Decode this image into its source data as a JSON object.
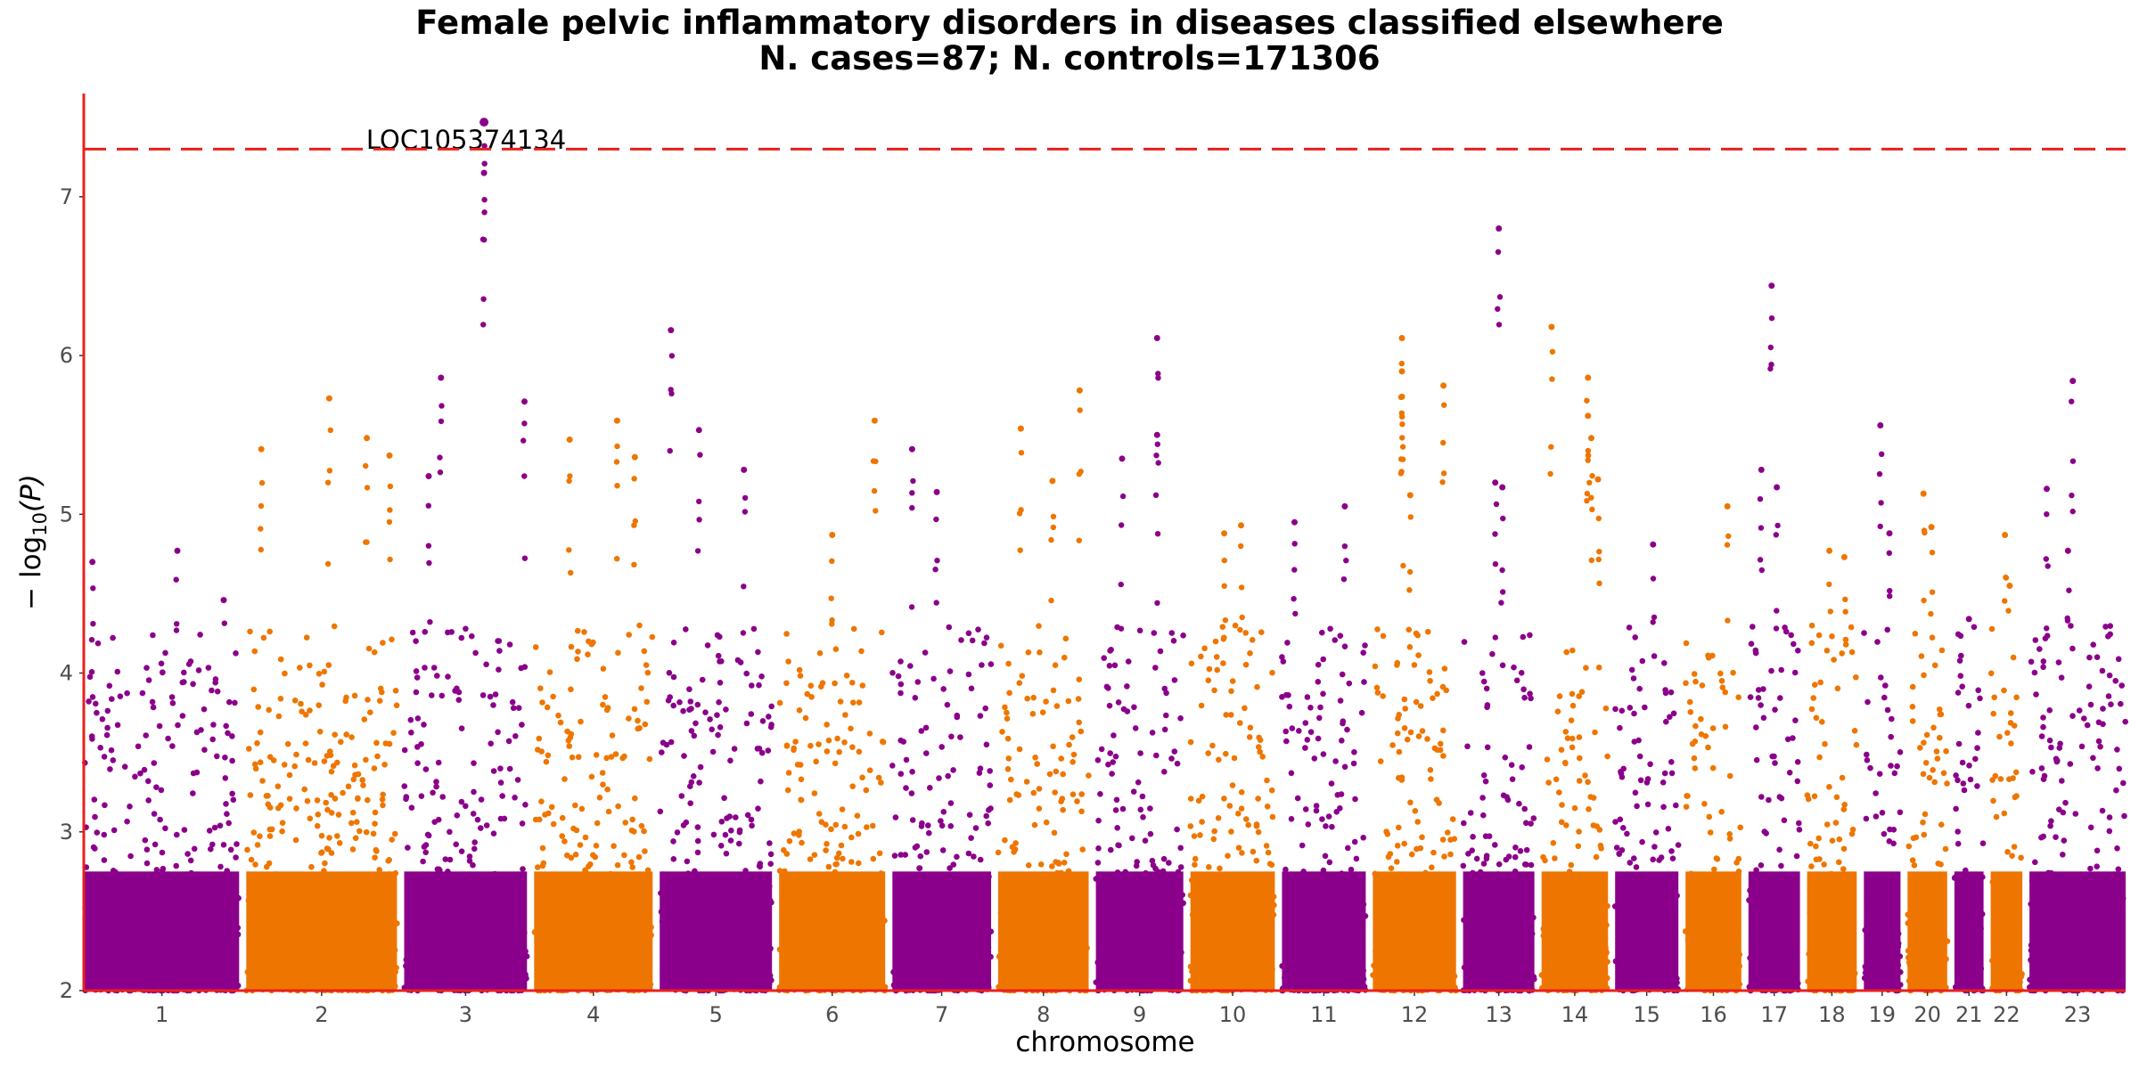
{
  "chart_data": {
    "type": "scatter",
    "subtype": "manhattan",
    "title": "Female pelvic inflammatory disorders in diseases classified elsewhere",
    "subtitle": "N. cases=87; N. controls=171306",
    "xlabel": "chromosome",
    "ylabel": "− log10(P)",
    "ylabel_parts": {
      "prefix": "− log",
      "sub": "10",
      "suffix": "(P)"
    },
    "ylim": [
      2,
      7.65
    ],
    "yticks": [
      2,
      3,
      4,
      5,
      6,
      7
    ],
    "significance_line": 7.3,
    "colors": {
      "odd": "#8B008B",
      "even": "#EE7600",
      "threshold": "#E8201E",
      "axis": "#E8201E"
    },
    "chromosomes": [
      {
        "label": "1",
        "length": 249,
        "color": "odd",
        "top_points": [
          [
            0.05,
            4.7
          ],
          [
            0.6,
            4.77
          ],
          [
            0.9,
            4.46
          ]
        ]
      },
      {
        "label": "2",
        "length": 243,
        "color": "even",
        "top_points": [
          [
            0.1,
            5.41
          ],
          [
            0.55,
            5.73
          ],
          [
            0.8,
            5.48
          ],
          [
            0.95,
            5.37
          ]
        ]
      },
      {
        "label": "3",
        "length": 198,
        "color": "odd",
        "top_points": [
          [
            0.3,
            5.86
          ],
          [
            0.2,
            5.24
          ],
          [
            0.65,
            7.47
          ],
          [
            0.65,
            7.15
          ],
          [
            0.98,
            5.71
          ]
        ]
      },
      {
        "label": "4",
        "length": 191,
        "color": "even",
        "top_points": [
          [
            0.3,
            5.47
          ],
          [
            0.7,
            5.59
          ],
          [
            0.85,
            5.36
          ]
        ]
      },
      {
        "label": "5",
        "length": 181,
        "color": "odd",
        "top_points": [
          [
            0.1,
            6.16
          ],
          [
            0.35,
            5.53
          ],
          [
            0.75,
            5.28
          ]
        ]
      },
      {
        "label": "6",
        "length": 171,
        "color": "even",
        "top_points": [
          [
            0.5,
            4.87
          ],
          [
            0.9,
            5.59
          ]
        ]
      },
      {
        "label": "7",
        "length": 159,
        "color": "odd",
        "top_points": [
          [
            0.2,
            5.41
          ],
          [
            0.45,
            5.14
          ]
        ]
      },
      {
        "label": "8",
        "length": 146,
        "color": "even",
        "top_points": [
          [
            0.25,
            5.54
          ],
          [
            0.6,
            5.21
          ],
          [
            0.9,
            5.78
          ]
        ]
      },
      {
        "label": "9",
        "length": 141,
        "color": "odd",
        "top_points": [
          [
            0.3,
            5.35
          ],
          [
            0.7,
            6.11
          ],
          [
            0.7,
            5.5
          ]
        ]
      },
      {
        "label": "10",
        "length": 136,
        "color": "even",
        "top_points": [
          [
            0.4,
            4.88
          ],
          [
            0.6,
            4.93
          ]
        ]
      },
      {
        "label": "11",
        "length": 135,
        "color": "odd",
        "top_points": [
          [
            0.15,
            4.95
          ],
          [
            0.75,
            5.05
          ]
        ]
      },
      {
        "label": "12",
        "length": 134,
        "color": "even",
        "top_points": [
          [
            0.35,
            6.11
          ],
          [
            0.35,
            5.9
          ],
          [
            0.35,
            5.74
          ],
          [
            0.45,
            5.12
          ],
          [
            0.85,
            5.81
          ]
        ]
      },
      {
        "label": "13",
        "length": 115,
        "color": "odd",
        "top_points": [
          [
            0.5,
            6.8
          ],
          [
            0.45,
            5.2
          ],
          [
            0.55,
            5.17
          ]
        ]
      },
      {
        "label": "14",
        "length": 107,
        "color": "even",
        "top_points": [
          [
            0.15,
            6.18
          ],
          [
            0.7,
            5.86
          ],
          [
            0.7,
            5.62
          ],
          [
            0.75,
            5.48
          ],
          [
            0.85,
            5.22
          ]
        ]
      },
      {
        "label": "15",
        "length": 102,
        "color": "odd",
        "top_points": [
          [
            0.6,
            4.81
          ]
        ]
      },
      {
        "label": "16",
        "length": 90,
        "color": "even",
        "top_points": [
          [
            0.75,
            5.05
          ]
        ]
      },
      {
        "label": "17",
        "length": 83,
        "color": "odd",
        "top_points": [
          [
            0.45,
            6.44
          ],
          [
            0.25,
            5.28
          ],
          [
            0.55,
            5.17
          ]
        ]
      },
      {
        "label": "18",
        "length": 80,
        "color": "even",
        "top_points": [
          [
            0.45,
            4.77
          ],
          [
            0.75,
            4.73
          ]
        ]
      },
      {
        "label": "19",
        "length": 59,
        "color": "odd",
        "top_points": [
          [
            0.45,
            5.56
          ],
          [
            0.7,
            4.88
          ]
        ]
      },
      {
        "label": "20",
        "length": 64,
        "color": "even",
        "top_points": [
          [
            0.4,
            5.13
          ],
          [
            0.6,
            4.92
          ]
        ]
      },
      {
        "label": "21",
        "length": 47,
        "color": "odd",
        "top_points": [
          [
            0.5,
            4.34
          ]
        ]
      },
      {
        "label": "22",
        "length": 51,
        "color": "even",
        "top_points": [
          [
            0.45,
            4.87
          ],
          [
            0.6,
            4.55
          ]
        ]
      },
      {
        "label": "23",
        "length": 155,
        "color": "odd",
        "top_points": [
          [
            0.18,
            5.16
          ],
          [
            0.4,
            4.77
          ],
          [
            0.45,
            5.84
          ]
        ]
      }
    ],
    "annotations": [
      {
        "text": "LOC105374134",
        "chromosome": "3",
        "x": 0.65,
        "y": 7.47
      }
    ]
  }
}
